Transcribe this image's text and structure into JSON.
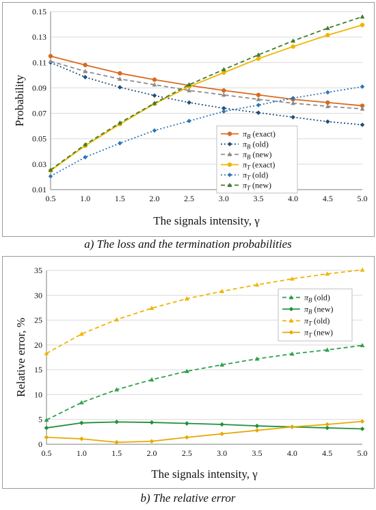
{
  "captions": {
    "a": "a) The loss and the termination probabilities",
    "b": "b) The relative error"
  },
  "chart_data": [
    {
      "type": "line",
      "xlabel": "The signals intensity, γ",
      "ylabel": "Probability",
      "x": [
        0.5,
        1.0,
        1.5,
        2.0,
        2.5,
        3.0,
        3.5,
        4.0,
        4.5,
        5.0
      ],
      "xticks": [
        "0.5",
        "1.0",
        "1.5",
        "2.0",
        "2.5",
        "3.0",
        "3.5",
        "4.0",
        "4.5",
        "5.0"
      ],
      "ylim": [
        0.01,
        0.15
      ],
      "yticks": [
        0.01,
        0.03,
        0.05,
        0.07,
        0.09,
        0.11,
        0.13,
        0.15
      ],
      "ytick_labels": [
        "0.01",
        "0.03",
        "0.05",
        "0.07",
        "0.09",
        "0.11",
        "0.13",
        "0.15"
      ],
      "grid": "horizontal",
      "legend_position": "bottom-right",
      "series": [
        {
          "name": "πB (exact)",
          "sym": "π",
          "sub": "B",
          "suffix": " (exact)",
          "color": "#d86a1e",
          "dash": "",
          "marker": "circle",
          "values": [
            0.115,
            0.108,
            0.1015,
            0.0965,
            0.092,
            0.088,
            0.0845,
            0.081,
            0.0785,
            0.076
          ]
        },
        {
          "name": "πB (old)",
          "sym": "π",
          "sub": "B",
          "suffix": " (old)",
          "color": "#1f4e79",
          "dash": "2,3",
          "marker": "diamond",
          "values": [
            0.11,
            0.0985,
            0.0905,
            0.084,
            0.0785,
            0.074,
            0.0705,
            0.067,
            0.0635,
            0.061
          ]
        },
        {
          "name": "πB (new)",
          "sym": "π",
          "sub": "B",
          "suffix": " (new)",
          "color": "#8c8c8c",
          "dash": "6,4",
          "marker": "triangle",
          "values": [
            0.111,
            0.103,
            0.097,
            0.0925,
            0.088,
            0.0845,
            0.081,
            0.078,
            0.0755,
            0.0735
          ]
        },
        {
          "name": "πT (exact)",
          "sym": "π",
          "sub": "T",
          "suffix": " (exact)",
          "color": "#f0b400",
          "dash": "",
          "marker": "circle",
          "values": [
            0.025,
            0.0445,
            0.0615,
            0.0775,
            0.091,
            0.102,
            0.113,
            0.1225,
            0.1315,
            0.1395
          ]
        },
        {
          "name": "πT (old)",
          "sym": "π",
          "sub": "T",
          "suffix": " (old)",
          "color": "#2e75b6",
          "dash": "2,3",
          "marker": "diamond",
          "values": [
            0.0205,
            0.0355,
            0.0465,
            0.0565,
            0.064,
            0.0715,
            0.0765,
            0.082,
            0.0865,
            0.091
          ]
        },
        {
          "name": "πT (new)",
          "sym": "π",
          "sub": "T",
          "suffix": " (new)",
          "color": "#3f7d2a",
          "dash": "6,4",
          "marker": "triangle",
          "values": [
            0.0255,
            0.0455,
            0.0625,
            0.078,
            0.0925,
            0.1045,
            0.116,
            0.127,
            0.137,
            0.146
          ]
        }
      ]
    },
    {
      "type": "line",
      "xlabel": "The signals intensity, γ",
      "ylabel": "Relative error, %",
      "x": [
        0.5,
        1.0,
        1.5,
        2.0,
        2.5,
        3.0,
        3.5,
        4.0,
        4.5,
        5.0
      ],
      "xticks": [
        "0.5",
        "1.0",
        "1.5",
        "2.0",
        "2.5",
        "3.0",
        "3.5",
        "4.0",
        "4.5",
        "5.0"
      ],
      "ylim": [
        0,
        35
      ],
      "yticks": [
        0,
        5,
        10,
        15,
        20,
        25,
        30,
        35
      ],
      "ytick_labels": [
        "0",
        "5",
        "10",
        "15",
        "20",
        "25",
        "30",
        "35"
      ],
      "grid": "horizontal",
      "legend_position": "right",
      "series": [
        {
          "name": "πB (old)",
          "sym": "π",
          "sub": "B",
          "suffix": " (old)",
          "color": "#2ca04c",
          "dash": "6,4",
          "marker": "triangle",
          "values": [
            4.9,
            8.4,
            11.0,
            13.0,
            14.7,
            16.0,
            17.2,
            18.2,
            19.0,
            19.9
          ]
        },
        {
          "name": "πB (new)",
          "sym": "π",
          "sub": "B",
          "suffix": " (new)",
          "color": "#1f8f3a",
          "dash": "",
          "marker": "diamond",
          "values": [
            3.3,
            4.3,
            4.5,
            4.4,
            4.2,
            4.0,
            3.7,
            3.5,
            3.3,
            3.1
          ]
        },
        {
          "name": "πT (old)",
          "sym": "π",
          "sub": "T",
          "suffix": " (old)",
          "color": "#f0b400",
          "dash": "6,4",
          "marker": "triangle",
          "values": [
            18.3,
            22.2,
            25.1,
            27.4,
            29.3,
            30.8,
            32.1,
            33.3,
            34.3,
            35.1
          ]
        },
        {
          "name": "πT (new)",
          "sym": "π",
          "sub": "T",
          "suffix": " (new)",
          "color": "#e8a800",
          "dash": "",
          "marker": "diamond",
          "values": [
            1.4,
            1.1,
            0.4,
            0.6,
            1.4,
            2.1,
            2.8,
            3.5,
            4.0,
            4.6
          ]
        }
      ]
    }
  ]
}
